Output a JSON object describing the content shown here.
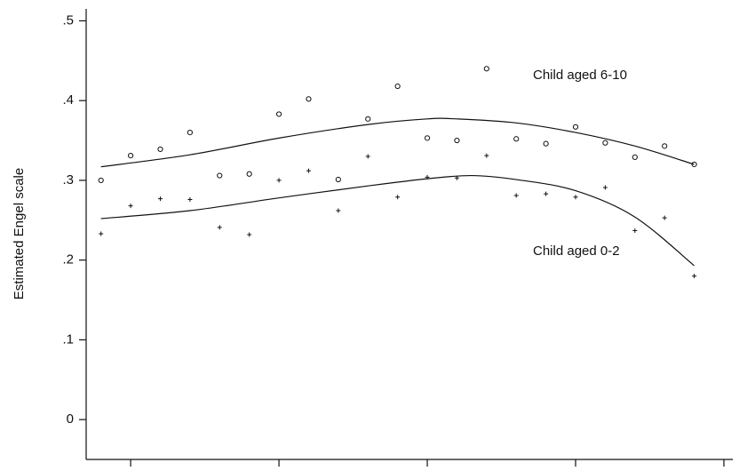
{
  "chart_data": {
    "type": "scatter",
    "y_label": "Estimated Engel scale",
    "x": [
      1969,
      1970,
      1971,
      1972,
      1973,
      1974,
      1975,
      1976,
      1977,
      1978,
      1979,
      1980,
      1981,
      1982,
      1983,
      1984,
      1985,
      1986,
      1987,
      1988,
      1989
    ],
    "xlim": [
      1968.5,
      1990.3
    ],
    "xticks": [
      1970,
      1975,
      1980,
      1985,
      1990
    ],
    "ylim": [
      -0.05,
      0.515
    ],
    "yticks": [
      0,
      {
        "value": 0.1,
        "label": ".1"
      },
      {
        "value": 0.2,
        "label": ".2"
      },
      {
        "value": 0.3,
        "label": ".3"
      },
      {
        "value": 0.4,
        "label": ".4"
      },
      {
        "value": 0.5,
        "label": ".5"
      }
    ],
    "series": [
      {
        "name": "Child aged 6-10",
        "marker": "circle",
        "color": "#111111",
        "values": [
          0.3,
          0.331,
          0.339,
          0.36,
          0.306,
          0.308,
          0.383,
          0.402,
          0.301,
          0.377,
          0.418,
          0.353,
          0.35,
          0.44,
          0.352,
          0.346,
          0.367,
          0.347,
          0.329,
          0.343,
          0.32
        ],
        "fit_x": [
          1969,
          1972,
          1975,
          1978,
          1980,
          1981,
          1983,
          1985,
          1987,
          1989
        ],
        "fit": [
          0.317,
          0.332,
          0.353,
          0.37,
          0.377,
          0.377,
          0.372,
          0.36,
          0.343,
          0.32
        ]
      },
      {
        "name": "Child aged 0-2",
        "marker": "plus",
        "color": "#111111",
        "values": [
          0.233,
          0.268,
          0.277,
          0.276,
          0.241,
          0.232,
          0.3,
          0.312,
          0.262,
          0.33,
          0.279,
          0.304,
          0.303,
          0.331,
          0.281,
          0.283,
          0.279,
          0.291,
          0.237,
          0.253,
          0.18
        ],
        "fit_x": [
          1969,
          1972,
          1975,
          1978,
          1980,
          1981.5,
          1983,
          1985,
          1987,
          1989
        ],
        "fit": [
          0.252,
          0.262,
          0.278,
          0.293,
          0.302,
          0.306,
          0.301,
          0.287,
          0.254,
          0.193
        ]
      }
    ]
  }
}
